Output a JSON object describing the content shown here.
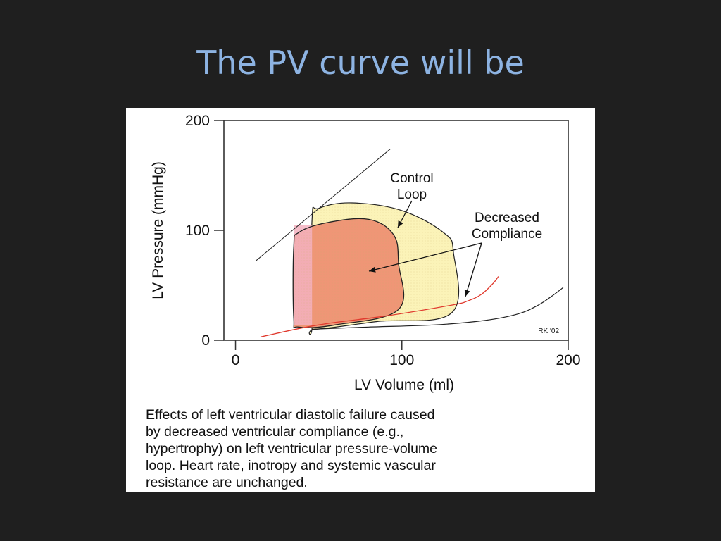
{
  "slide": {
    "title": "The PV curve will be"
  },
  "figure": {
    "caption_lines": [
      "Effects of left ventricular diastolic failure caused",
      "by decreased ventricular compliance (e.g.,",
      "hypertrophy) on left ventricular pressure-volume",
      "loop. Heart rate, inotropy and systemic vascular",
      "resistance are unchanged."
    ],
    "signature": "RK '02",
    "annotations": {
      "control_loop": [
        "Control",
        "Loop"
      ],
      "decreased_compliance": [
        "Decreased",
        "Compliance"
      ]
    },
    "colors": {
      "control_fill": "#fbf3b8",
      "decreased_fill": "#ef9676",
      "decreased_edge_fill": "#f3b2bf",
      "red_curve": "#e03a2e",
      "outline": "#222222"
    }
  },
  "chart_data": {
    "type": "line",
    "title": "",
    "xlabel": "LV Volume (ml)",
    "ylabel": "LV Pressure (mmHg)",
    "xlim": [
      -7,
      200
    ],
    "ylim": [
      0,
      200
    ],
    "xticks": [
      0,
      100,
      200
    ],
    "yticks": [
      0,
      100,
      200
    ],
    "grid": false,
    "series": [
      {
        "points": [
          [
            46,
            10
          ],
          [
            80,
            12
          ],
          [
            120,
            14
          ],
          [
            150,
            18
          ],
          [
            170,
            24
          ],
          [
            182,
            32
          ],
          [
            190,
            40
          ],
          [
            197,
            48
          ]
        ]
      },
      {
        "points": [
          [
            15,
            3
          ],
          [
            50,
            14
          ],
          [
            90,
            22
          ],
          [
            130,
            32
          ],
          [
            140,
            36
          ],
          [
            148,
            42
          ],
          [
            155,
            52
          ],
          [
            158,
            58
          ]
        ]
      },
      {
        "points": [
          [
            48,
            10
          ],
          [
            85,
            17
          ],
          [
            130,
            25
          ],
          [
            131,
            80
          ],
          [
            125,
            98
          ],
          [
            100,
            118
          ],
          [
            70,
            125
          ],
          [
            50,
            120
          ],
          [
            46,
            110
          ],
          [
            46,
            15
          ]
        ]
      },
      {
        "points": [
          [
            38,
            12
          ],
          [
            60,
            14
          ],
          [
            98,
            28
          ],
          [
            98,
            70
          ],
          [
            95,
            96
          ],
          [
            80,
            110
          ],
          [
            55,
            107
          ],
          [
            38,
            98
          ],
          [
            35,
            85
          ],
          [
            35,
            20
          ]
        ]
      },
      {
        "points": [
          [
            12,
            72
          ],
          [
            93,
            174
          ]
        ]
      }
    ]
  }
}
